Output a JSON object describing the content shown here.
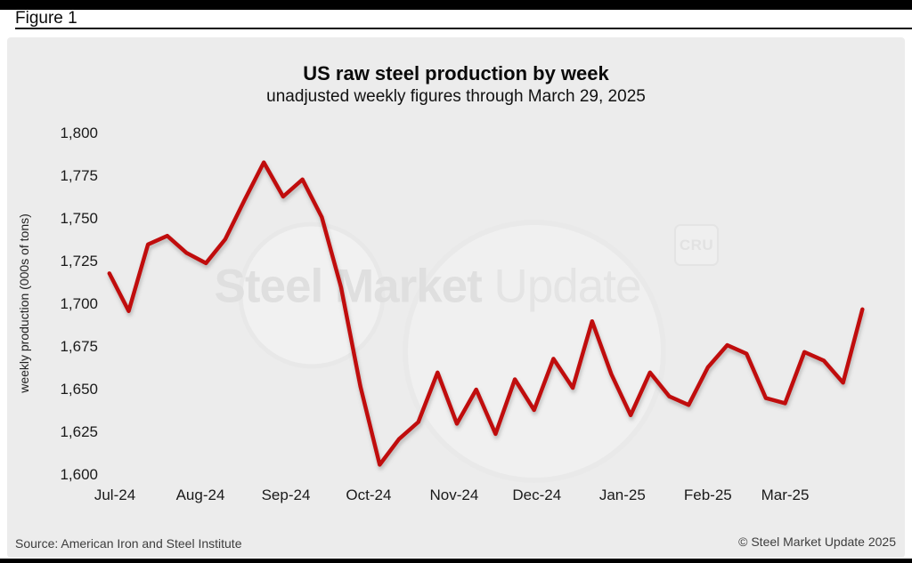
{
  "figure_label": "Figure 1",
  "watermark": {
    "brand_bold": "Steel Market",
    "brand_light": "Update",
    "cru": "CRU"
  },
  "footer": {
    "source": "Source: American Iron and Steel Institute",
    "copyright": "© Steel Market Update 2025"
  },
  "chart_data": {
    "type": "line",
    "title": "US raw steel production by week",
    "subtitle": "unadjusted weekly figures through March 29, 2025",
    "ylabel": "weekly production (000s of tons)",
    "ylim": [
      1600,
      1800
    ],
    "grid": false,
    "legend": "none",
    "line_color": "#c00d0d",
    "y_ticks": [
      "1,800",
      "1,775",
      "1,750",
      "1,725",
      "1,700",
      "1,675",
      "1,650",
      "1,625",
      "1,600"
    ],
    "x_ticks": [
      {
        "label": "Jul-24",
        "date": "2024-07-01"
      },
      {
        "label": "Aug-24",
        "date": "2024-08-01"
      },
      {
        "label": "Sep-24",
        "date": "2024-09-01"
      },
      {
        "label": "Oct-24",
        "date": "2024-10-01"
      },
      {
        "label": "Nov-24",
        "date": "2024-11-01"
      },
      {
        "label": "Dec-24",
        "date": "2024-12-01"
      },
      {
        "label": "Jan-25",
        "date": "2025-01-01"
      },
      {
        "label": "Feb-25",
        "date": "2025-02-01"
      },
      {
        "label": "Mar-25",
        "date": "2025-03-01"
      }
    ],
    "series_name": "US weekly raw steel production (000s of tons)",
    "points": [
      {
        "week_ending": "2024-06-29",
        "value": 1718
      },
      {
        "week_ending": "2024-07-06",
        "value": 1696
      },
      {
        "week_ending": "2024-07-13",
        "value": 1735
      },
      {
        "week_ending": "2024-07-20",
        "value": 1740
      },
      {
        "week_ending": "2024-07-27",
        "value": 1730
      },
      {
        "week_ending": "2024-08-03",
        "value": 1724
      },
      {
        "week_ending": "2024-08-10",
        "value": 1738
      },
      {
        "week_ending": "2024-08-17",
        "value": 1761
      },
      {
        "week_ending": "2024-08-24",
        "value": 1783
      },
      {
        "week_ending": "2024-08-31",
        "value": 1763
      },
      {
        "week_ending": "2024-09-07",
        "value": 1773
      },
      {
        "week_ending": "2024-09-14",
        "value": 1751
      },
      {
        "week_ending": "2024-09-21",
        "value": 1710
      },
      {
        "week_ending": "2024-09-28",
        "value": 1652
      },
      {
        "week_ending": "2024-10-05",
        "value": 1606
      },
      {
        "week_ending": "2024-10-12",
        "value": 1621
      },
      {
        "week_ending": "2024-10-19",
        "value": 1631
      },
      {
        "week_ending": "2024-10-26",
        "value": 1660
      },
      {
        "week_ending": "2024-11-02",
        "value": 1630
      },
      {
        "week_ending": "2024-11-09",
        "value": 1650
      },
      {
        "week_ending": "2024-11-16",
        "value": 1624
      },
      {
        "week_ending": "2024-11-23",
        "value": 1656
      },
      {
        "week_ending": "2024-11-30",
        "value": 1638
      },
      {
        "week_ending": "2024-12-07",
        "value": 1668
      },
      {
        "week_ending": "2024-12-14",
        "value": 1651
      },
      {
        "week_ending": "2024-12-21",
        "value": 1690
      },
      {
        "week_ending": "2024-12-28",
        "value": 1659
      },
      {
        "week_ending": "2025-01-04",
        "value": 1635
      },
      {
        "week_ending": "2025-01-11",
        "value": 1660
      },
      {
        "week_ending": "2025-01-18",
        "value": 1646
      },
      {
        "week_ending": "2025-01-25",
        "value": 1641
      },
      {
        "week_ending": "2025-02-01",
        "value": 1663
      },
      {
        "week_ending": "2025-02-08",
        "value": 1676
      },
      {
        "week_ending": "2025-02-15",
        "value": 1671
      },
      {
        "week_ending": "2025-02-22",
        "value": 1645
      },
      {
        "week_ending": "2025-03-01",
        "value": 1642
      },
      {
        "week_ending": "2025-03-08",
        "value": 1672
      },
      {
        "week_ending": "2025-03-15",
        "value": 1667
      },
      {
        "week_ending": "2025-03-22",
        "value": 1654
      },
      {
        "week_ending": "2025-03-29",
        "value": 1697
      }
    ]
  }
}
